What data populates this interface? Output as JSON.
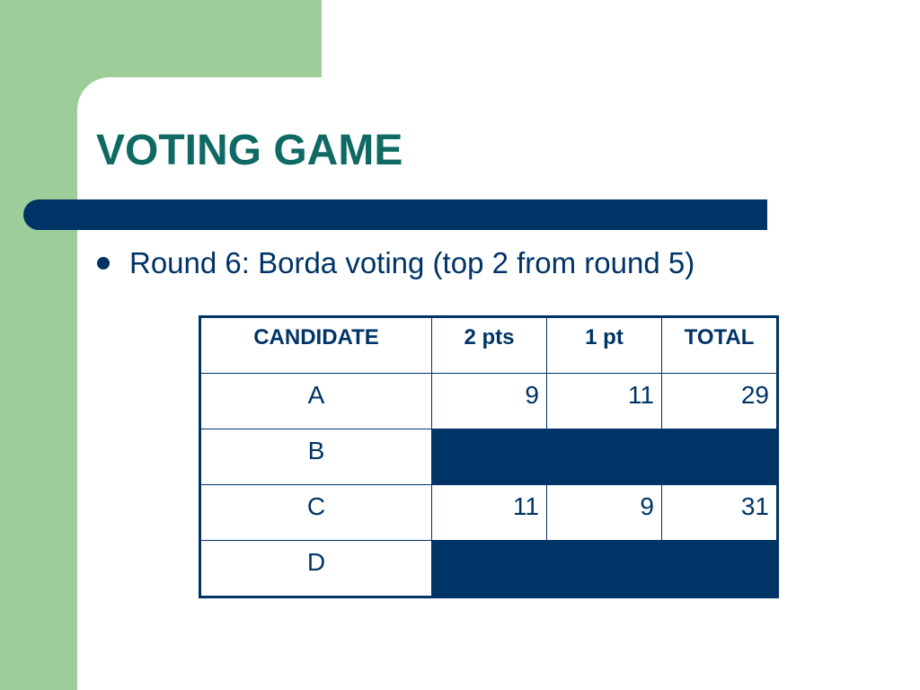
{
  "slide": {
    "title": "VOTING GAME",
    "bullet": "Round 6: Borda voting (top 2 from round 5)"
  },
  "table": {
    "headers": [
      "CANDIDATE",
      "2 pts",
      "1 pt",
      "TOTAL"
    ],
    "rows": [
      {
        "candidate": "A",
        "two_pts": "9",
        "one_pt": "11",
        "total": "29",
        "filled": false
      },
      {
        "candidate": "B",
        "two_pts": "",
        "one_pt": "",
        "total": "",
        "filled": true
      },
      {
        "candidate": "C",
        "two_pts": "11",
        "one_pt": "9",
        "total": "31",
        "filled": false
      },
      {
        "candidate": "D",
        "two_pts": "",
        "one_pt": "",
        "total": "",
        "filled": true
      }
    ]
  },
  "colors": {
    "green_accent": "#9dcd99",
    "navy": "#003466",
    "title_teal": "#0e6a63"
  }
}
